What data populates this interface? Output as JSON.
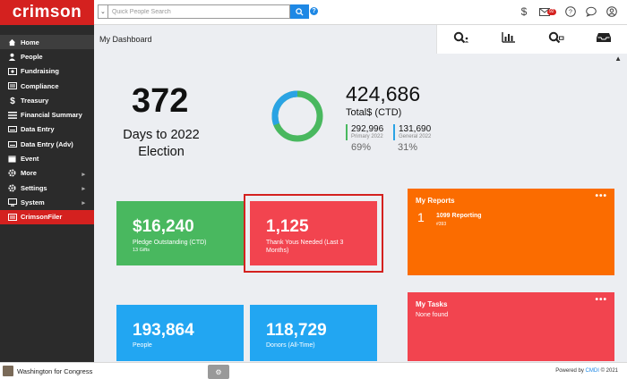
{
  "app": {
    "logo": "crimson"
  },
  "search": {
    "placeholder": "Quick People Search",
    "dropdown_glyph": "⌄",
    "help_glyph": "?"
  },
  "topbar": {
    "dollar_glyph": "$",
    "mail_badge": "92",
    "help_glyph": "?"
  },
  "sidebar": {
    "items": [
      {
        "label": "Home",
        "icon": "home-icon"
      },
      {
        "label": "People",
        "icon": "person-icon"
      },
      {
        "label": "Fundraising",
        "icon": "money-icon"
      },
      {
        "label": "Compliance",
        "icon": "folder-icon"
      },
      {
        "label": "Treasury",
        "icon": "dollar-icon"
      },
      {
        "label": "Financial Summary",
        "icon": "list-icon"
      },
      {
        "label": "Data Entry",
        "icon": "keyboard-icon"
      },
      {
        "label": "Data Entry (Adv)",
        "icon": "keyboard-icon"
      },
      {
        "label": "Event",
        "icon": "calendar-icon"
      },
      {
        "label": "More",
        "icon": "gear-icon"
      },
      {
        "label": "Settings",
        "icon": "cog-icon"
      },
      {
        "label": "System",
        "icon": "monitor-icon"
      },
      {
        "label": "CrimsonFiler",
        "icon": "file-icon"
      }
    ]
  },
  "header": {
    "title": "My Dashboard",
    "collapse_glyph": "▲"
  },
  "stats": {
    "days_value": "372",
    "days_label": "Days to 2022 Election",
    "total_value": "424,686",
    "total_label": "Total$ (CTD)",
    "primary_value": "292,996",
    "primary_label": "Primary 2022",
    "primary_pct": "69%",
    "general_value": "131,690",
    "general_label": "General 2022",
    "general_pct": "31%"
  },
  "tiles": {
    "pledge_value": "$16,240",
    "pledge_label": "Pledge Outstanding (CTD)",
    "pledge_sub": "13 Gifts",
    "thanks_value": "1,125",
    "thanks_label": "Thank Yous Needed (Last 3 Months)",
    "people_value": "193,864",
    "people_label": "People",
    "donors_value": "118,729",
    "donors_label": "Donors (All-Time)"
  },
  "reports": {
    "title": "My Reports",
    "menu": "•••",
    "count": "1",
    "name": "1099 Reporting",
    "id": "#393"
  },
  "tasks": {
    "title": "My Tasks",
    "menu": "•••",
    "empty": "None found"
  },
  "footer": {
    "org": "Washington for Congress",
    "powered_prefix": "Powered by",
    "powered_brand": "CMDI",
    "powered_suffix": "© 2021",
    "center_glyph": "⚙"
  },
  "colors": {
    "brand": "#d4211f",
    "green": "#49b85f",
    "red": "#f2444f",
    "blue": "#22a6f2",
    "orange": "#fb6c00"
  }
}
